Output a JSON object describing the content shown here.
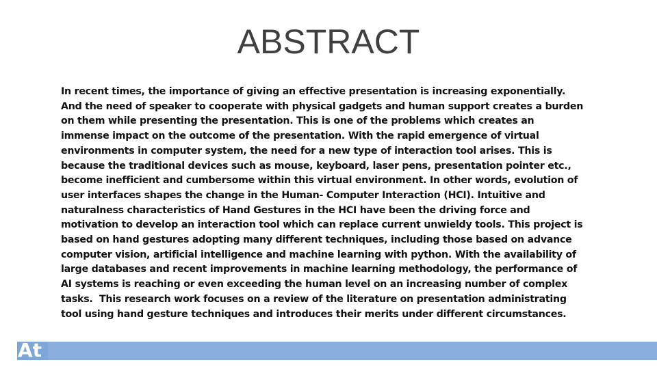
{
  "slide": {
    "title": "ABSTRACT",
    "body_lines": [
      "In recent times, the importance of giving an effective presentation is increasing exponentially.",
      "And the need of speaker to cooperate with physical gadgets and human support creates a burden",
      "on them while presenting the presentation. This is one of the problems which creates an",
      "immense impact on the outcome of the presentation. With the rapid emergence of virtual",
      "environments in computer system, the need for a new type of interaction tool arises. This is",
      "because the traditional devices such as mouse, keyboard, laser pens, presentation pointer etc.,",
      "become inefficient and cumbersome within this virtual environment. In other words, evolution of",
      "user interfaces shapes the change in the Human- Computer Interaction (HCI). Intuitive and",
      "naturalness characteristics of Hand Gestures in the HCI have been the driving force and",
      "motivation to develop an interaction tool which can replace current unwieldy tools. This project is",
      "based on hand gestures adopting many different techniques, including those based on advance",
      "computer vision, artificial intelligence and machine learning with python. With the availability of",
      "large databases and recent improvements in machine learning methodology, the performance of",
      "AI systems is reaching or even exceeding the human level on an increasing number of complex",
      "tasks.  This research work focuses on a review of the literature on presentation administrating",
      "tool using hand gesture techniques and introduces their merits under different circumstances."
    ],
    "footer_logo_text": "At",
    "colors": {
      "title": "#404040",
      "body": "#111111",
      "footer_bar": "#8aaede",
      "logo_bg": "#7ea6d8"
    }
  }
}
